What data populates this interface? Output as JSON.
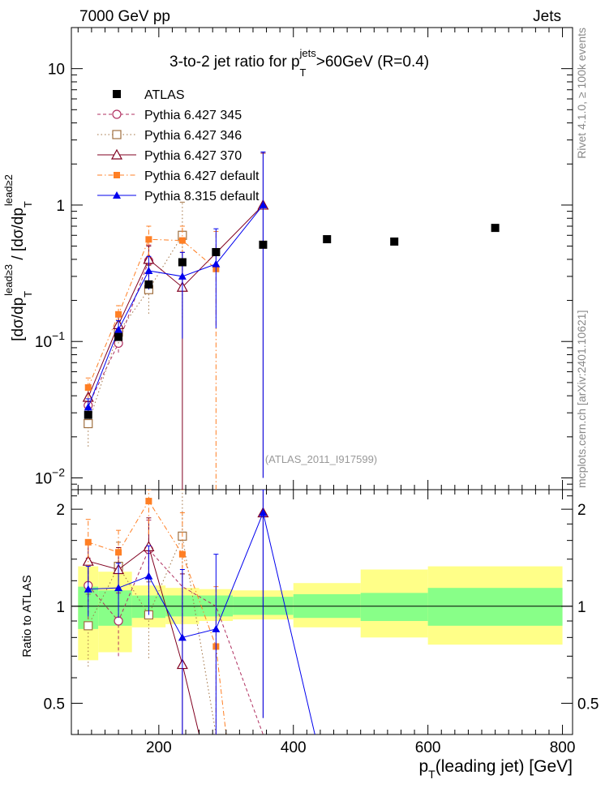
{
  "header": {
    "left": "7000 GeV pp",
    "right": "Jets"
  },
  "side_labels": {
    "rivet": "Rivet 4.1.0, ≥ 100k events",
    "mcplots": "mcplots.cern.ch [arXiv:2401.10621]"
  },
  "chart_data": {
    "type": "scatter",
    "title": "3-to-2 jet ratio for p_T^jets >60GeV (R=0.4)",
    "title_parts": {
      "pre": "3-to-2 jet ratio for p",
      "sub": "T",
      "sup": "jets",
      "post": ">60GeV (R=0.4)"
    },
    "analysis_label": "(ATLAS_2011_I917599)",
    "xlabel": "p_T(leading jet) [GeV]",
    "xlabel_parts": {
      "pre": "p",
      "sub": "T",
      "post": "(leading jet) [GeV]"
    },
    "ylabel": "[dσ/dp_T^lead≥3 / [dσ/dp_T^lead≥2",
    "ylabel_parts": {
      "a": "[dσ/dp",
      "a_sub": "T",
      "a_sup": "lead≥3",
      "b": " / [dσ/dp",
      "b_sub": "T",
      "b_sup": "lead≥2"
    },
    "ratio_ylabel": "Ratio to ATLAS",
    "xlim": [
      70,
      815
    ],
    "main_ylim": [
      0.0082,
      20
    ],
    "main_yscale": "log",
    "ratio_ylim": [
      0.4,
      2.3
    ],
    "x_ticks": [
      {
        "value": 200,
        "label": "200"
      },
      {
        "value": 400,
        "label": "400"
      },
      {
        "value": 600,
        "label": "600"
      },
      {
        "value": 800,
        "label": "800"
      }
    ],
    "main_y_ticks": [
      {
        "value": 0.01,
        "base": "10",
        "exp": "−2"
      },
      {
        "value": 0.1,
        "base": "10",
        "exp": "−1"
      },
      {
        "value": 1,
        "base": "1",
        "exp": ""
      },
      {
        "value": 10,
        "base": "10",
        "exp": ""
      }
    ],
    "ratio_y_ticks": [
      {
        "value": 0.5,
        "label": "0.5"
      },
      {
        "value": 1,
        "label": "1"
      },
      {
        "value": 2,
        "label": "2"
      }
    ],
    "atlas": {
      "name": "ATLAS",
      "x": [
        95,
        140,
        185,
        235,
        285,
        355,
        450,
        550,
        700
      ],
      "y": [
        0.029,
        0.108,
        0.262,
        0.381,
        0.452,
        0.512,
        0.562,
        0.54,
        0.68
      ]
    },
    "ratio_bands": {
      "edges": [
        80,
        110,
        160,
        210,
        260,
        310,
        400,
        500,
        600,
        800
      ],
      "inner": [
        [
          0.85,
          1.15
        ],
        [
          0.87,
          1.12
        ],
        [
          0.92,
          1.08
        ],
        [
          0.93,
          1.08
        ],
        [
          0.93,
          1.08
        ],
        [
          0.94,
          1.07
        ],
        [
          0.92,
          1.09
        ],
        [
          0.9,
          1.1
        ],
        [
          0.87,
          1.14
        ]
      ],
      "outer": [
        [
          0.68,
          1.33
        ],
        [
          0.72,
          1.28
        ],
        [
          0.86,
          1.16
        ],
        [
          0.88,
          1.14
        ],
        [
          0.9,
          1.13
        ],
        [
          0.91,
          1.12
        ],
        [
          0.86,
          1.18
        ],
        [
          0.8,
          1.3
        ],
        [
          0.76,
          1.33
        ]
      ]
    },
    "series": [
      {
        "name": "Pythia 6.427 345",
        "color": "#b03060",
        "marker": "circle-open",
        "dash": "4,3",
        "x": [
          95,
          140,
          185
        ],
        "y": [
          0.034,
          0.097,
          0.39
        ],
        "err_lo": [
          0.006,
          0.014,
          0.12
        ],
        "err_hi": [
          0.006,
          0.014,
          0.12
        ],
        "ratio": [
          1.16,
          0.9,
          1.5
        ],
        "ratio_err": [
          0.25,
          0.2,
          0.35
        ],
        "ratio_line": [
          [
            95,
            1.16
          ],
          [
            140,
            0.9
          ],
          [
            185,
            1.5
          ],
          [
            235,
            1.15
          ],
          [
            285,
            1.0
          ],
          [
            355,
            0.4
          ]
        ]
      },
      {
        "name": "Pythia 6.427 346",
        "color": "#a07040",
        "marker": "square-open",
        "dash": "1.5,3",
        "x": [
          95,
          140,
          185,
          235
        ],
        "y": [
          0.025,
          0.117,
          0.24,
          0.6
        ],
        "err_lo": [
          0.008,
          0.02,
          0.08,
          0.45
        ],
        "err_hi": [
          0.008,
          0.02,
          0.12,
          0.45
        ],
        "ratio": [
          0.87,
          1.33,
          0.94,
          1.65
        ],
        "ratio_err": [
          0.22,
          0.25,
          0.25,
          0.8
        ],
        "ratio_line": [
          [
            95,
            0.87
          ],
          [
            140,
            1.33
          ],
          [
            185,
            0.94
          ],
          [
            235,
            1.65
          ],
          [
            285,
            0.4
          ]
        ]
      },
      {
        "name": "Pythia 6.427 370",
        "color": "#800020",
        "marker": "triangle-open",
        "dash": "",
        "x": [
          95,
          140,
          185,
          235,
          355
        ],
        "y": [
          0.039,
          0.133,
          0.4,
          0.25,
          1.0
        ],
        "err_lo": [
          0.006,
          0.02,
          0.1,
          0.246,
          0.99
        ],
        "err_hi": [
          0.006,
          0.02,
          0.1,
          0.2,
          1.4
        ],
        "ratio": [
          1.38,
          1.3,
          1.53,
          0.66,
          1.95
        ],
        "ratio_err": [
          0.2,
          0.22,
          0.35,
          0.6,
          1.5
        ],
        "ratio_line": [
          [
            95,
            1.38
          ],
          [
            140,
            1.3
          ],
          [
            185,
            1.53
          ],
          [
            235,
            0.66
          ],
          [
            260,
            0.4
          ]
        ]
      },
      {
        "name": "Pythia 6.427 default",
        "color": "#ff7f24",
        "marker": "square-filled",
        "dash": "6,3,1.5,3",
        "x": [
          95,
          140,
          185,
          235,
          285
        ],
        "y": [
          0.046,
          0.158,
          0.56,
          0.55,
          0.34
        ],
        "err_lo": [
          0.008,
          0.025,
          0.14,
          0.25,
          0.333
        ],
        "err_hi": [
          0.008,
          0.025,
          0.14,
          0.15,
          0.3
        ],
        "ratio": [
          1.58,
          1.47,
          2.12,
          1.45,
          0.75
        ],
        "ratio_err": [
          0.28,
          0.25,
          0.45,
          0.5,
          0.4
        ],
        "ratio_line": [
          [
            95,
            1.58
          ],
          [
            140,
            1.47
          ],
          [
            185,
            2.12
          ],
          [
            235,
            1.45
          ],
          [
            285,
            0.75
          ],
          [
            300,
            0.4
          ]
        ]
      },
      {
        "name": "Pythia 8.315 default",
        "color": "#0000ee",
        "marker": "triangle-filled",
        "dash": "",
        "x": [
          95,
          140,
          185,
          235,
          285,
          355
        ],
        "y": [
          0.033,
          0.122,
          0.33,
          0.3,
          0.37,
          1.0
        ],
        "err_lo": [
          0.005,
          0.02,
          0.09,
          0.195,
          0.245,
          0.99
        ],
        "err_hi": [
          0.005,
          0.02,
          0.09,
          0.15,
          0.3,
          1.45
        ],
        "ratio": [
          1.13,
          1.14,
          1.24,
          0.8,
          0.85,
          1.95
        ],
        "ratio_err": [
          0.2,
          0.22,
          0.3,
          0.5,
          0.6,
          1.5
        ],
        "ratio_line": [
          [
            95,
            1.13
          ],
          [
            140,
            1.14
          ],
          [
            185,
            1.24
          ],
          [
            235,
            0.8
          ],
          [
            285,
            0.85
          ],
          [
            355,
            1.95
          ],
          [
            432,
            0.4
          ]
        ]
      }
    ]
  }
}
